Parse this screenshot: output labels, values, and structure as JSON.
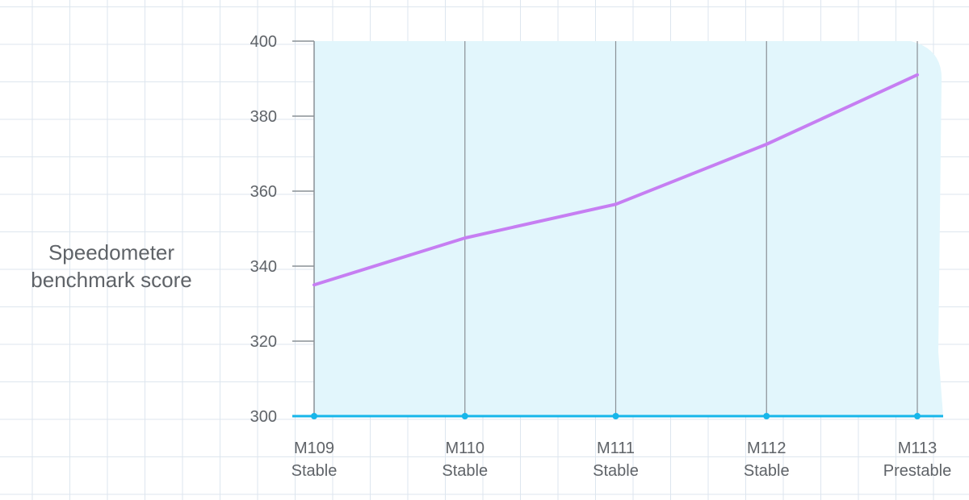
{
  "chart_data": {
    "type": "line",
    "ylabel": [
      "Speedometer",
      "benchmark score"
    ],
    "categories": [
      [
        "M109",
        "Stable"
      ],
      [
        "M110",
        "Stable"
      ],
      [
        "M111",
        "Stable"
      ],
      [
        "M112",
        "Stable"
      ],
      [
        "M113",
        "Prestable"
      ]
    ],
    "series": [
      {
        "color": "#c67ef2",
        "values": [
          335,
          347.5,
          356.5,
          372.5,
          391
        ]
      }
    ],
    "baseline_color": "#17b6ea",
    "area_color": "#e2f6fc",
    "ylim": [
      300,
      400
    ],
    "yticks": [
      300,
      320,
      340,
      360,
      380,
      400
    ],
    "grid": false
  }
}
